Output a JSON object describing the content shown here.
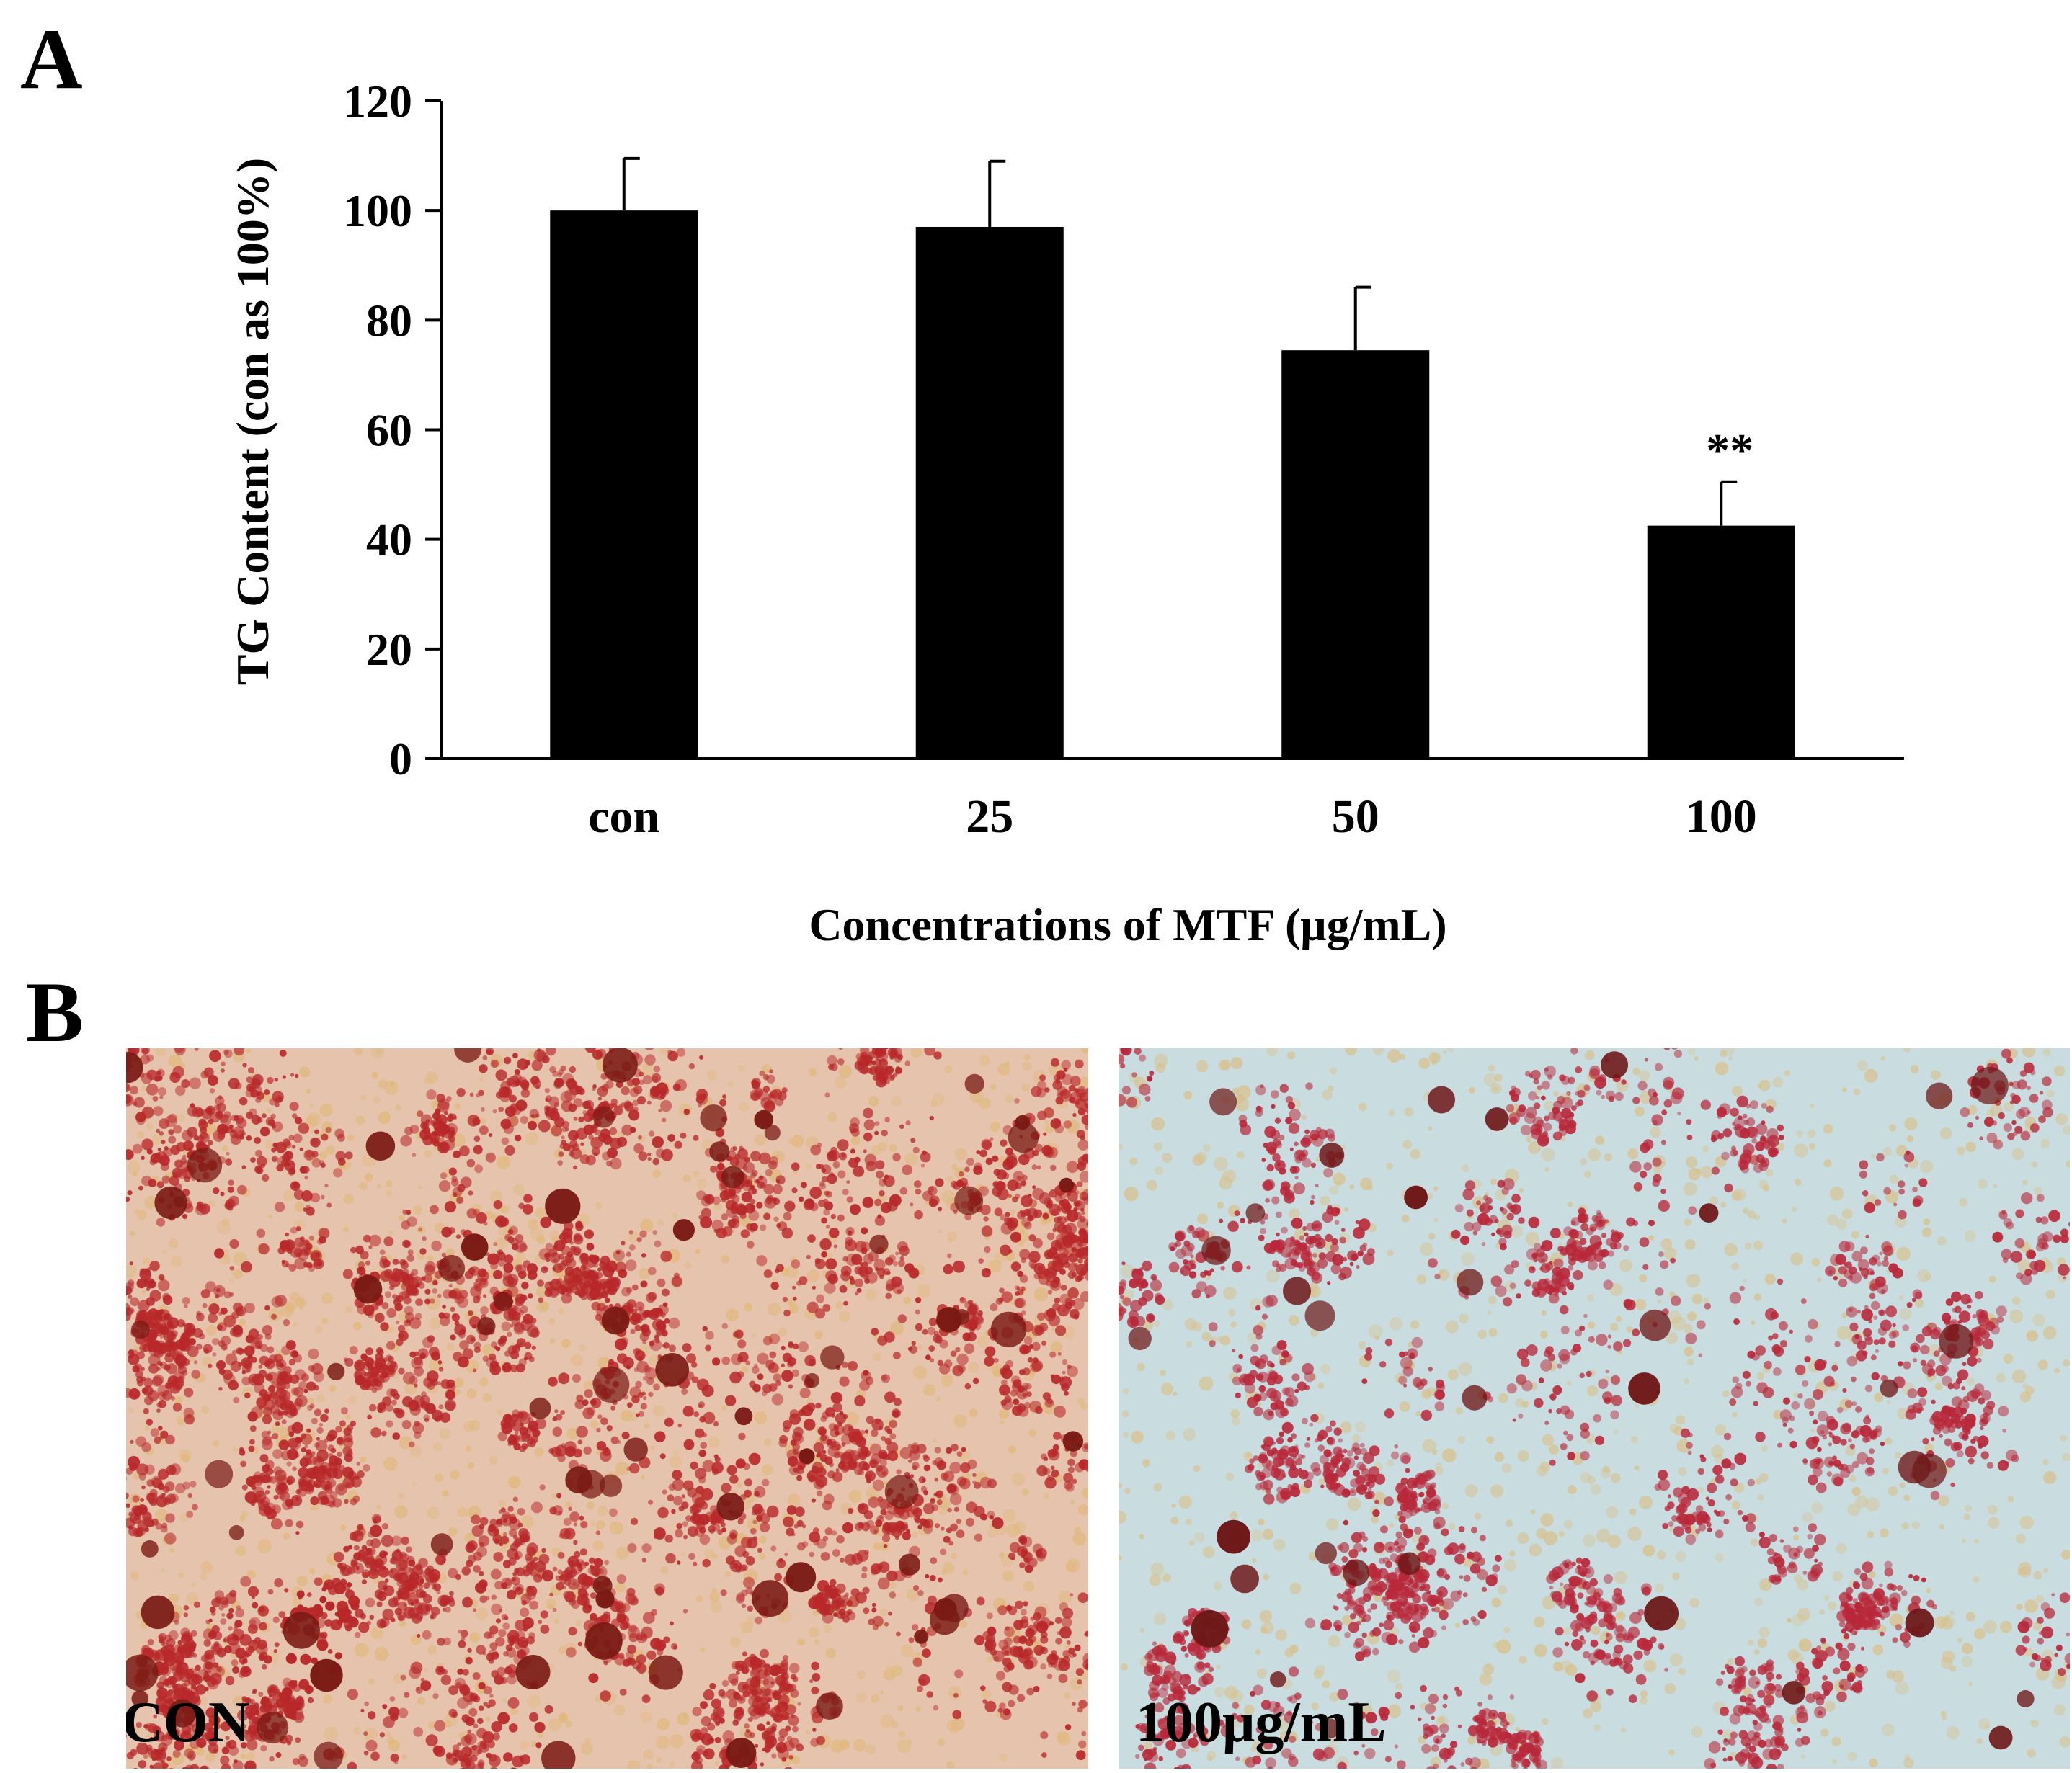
{
  "panels": {
    "a_label": "A",
    "b_label": "B"
  },
  "chart_data": {
    "type": "bar",
    "categories": [
      "con",
      "25",
      "50",
      "100"
    ],
    "values": [
      100,
      97,
      74.5,
      42.5
    ],
    "errors": [
      9.5,
      12,
      11.5,
      8
    ],
    "significance": [
      "",
      "",
      "",
      "**"
    ],
    "title": "",
    "xlabel": "Concentrations of MTF (μg/mL)",
    "ylabel": "TG Content (con as 100%)",
    "ylim": [
      0,
      120
    ],
    "yticks": [
      "0",
      "20",
      "40",
      "60",
      "80",
      "100",
      "120"
    ],
    "grid": false,
    "legend": "none",
    "bar_color": "#000000"
  },
  "micrographs": [
    {
      "caption": "CON",
      "background": "#e6c3ad",
      "stain": "#b8282a",
      "dark": "#7a1a14",
      "lipid": "#e0b87a"
    },
    {
      "caption": "100μg/mL",
      "background": "#c9dde0",
      "stain": "#b8283a",
      "dark": "#6e1818",
      "lipid": "#d8c08a"
    }
  ]
}
